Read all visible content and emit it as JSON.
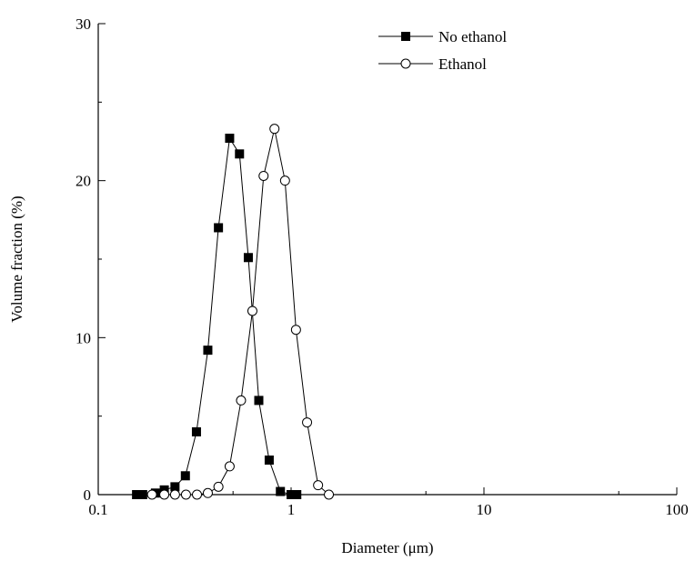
{
  "chart_data": {
    "type": "scatter",
    "title": "",
    "xlabel": "Diameter (μm)",
    "ylabel": "Volume fraction (%)",
    "xscale": "log",
    "xlim": [
      0.1,
      100
    ],
    "ylim": [
      0,
      30
    ],
    "x_ticks": [
      "0.1",
      "1",
      "10",
      "100"
    ],
    "y_ticks": [
      "0",
      "10",
      "20",
      "30"
    ],
    "grid": false,
    "legend_position": "top-right",
    "series": [
      {
        "name": "No ethanol",
        "marker": "square-filled",
        "color": "#000000",
        "x": [
          0.158,
          0.17,
          0.198,
          0.22,
          0.25,
          0.283,
          0.323,
          0.37,
          0.42,
          0.48,
          0.54,
          0.6,
          0.68,
          0.77,
          0.88,
          1.0,
          1.07
        ],
        "y": [
          0.0,
          0.0,
          0.1,
          0.3,
          0.5,
          1.2,
          4.0,
          9.2,
          17.0,
          22.7,
          21.7,
          15.1,
          6.0,
          2.2,
          0.2,
          0.0,
          0.0
        ]
      },
      {
        "name": "Ethanol",
        "marker": "circle-open",
        "color": "#000000",
        "x": [
          0.19,
          0.22,
          0.25,
          0.285,
          0.325,
          0.37,
          0.42,
          0.48,
          0.55,
          0.63,
          0.72,
          0.82,
          0.93,
          1.06,
          1.21,
          1.38,
          1.57
        ],
        "y": [
          0.0,
          0.0,
          0.0,
          0.0,
          0.0,
          0.1,
          0.5,
          1.8,
          6.0,
          11.7,
          20.3,
          23.3,
          20.0,
          10.5,
          4.6,
          0.6,
          0.0
        ]
      }
    ]
  }
}
